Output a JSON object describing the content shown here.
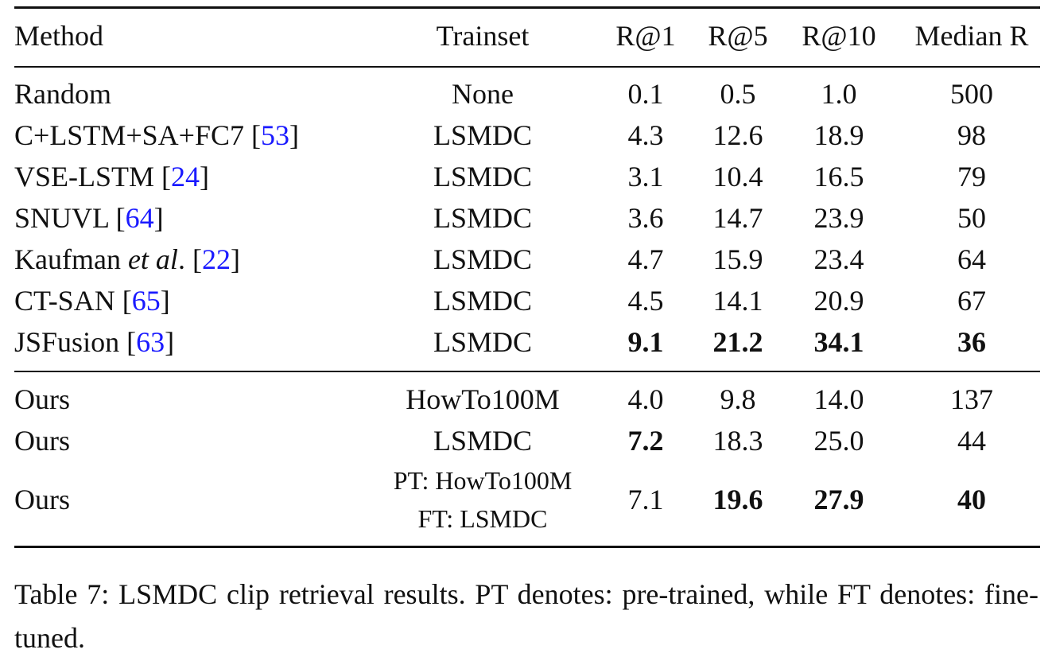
{
  "table": {
    "header": [
      "Method",
      "Trainset",
      "R@1",
      "R@5",
      "R@10",
      "Median R"
    ],
    "groups": [
      [
        {
          "method": [
            {
              "text": "Random"
            }
          ],
          "trainset": [
            "None"
          ],
          "values": [
            "0.1",
            "0.5",
            "1.0",
            "500"
          ],
          "bold": []
        },
        {
          "method": [
            {
              "text": "C+LSTM+SA+FC7 ["
            },
            {
              "text": "53",
              "link": true
            },
            {
              "text": "]"
            }
          ],
          "trainset": [
            "LSMDC"
          ],
          "values": [
            "4.3",
            "12.6",
            "18.9",
            "98"
          ],
          "bold": []
        },
        {
          "method": [
            {
              "text": "VSE-LSTM ["
            },
            {
              "text": "24",
              "link": true
            },
            {
              "text": "]"
            }
          ],
          "trainset": [
            "LSMDC"
          ],
          "values": [
            "3.1",
            "10.4",
            "16.5",
            "79"
          ],
          "bold": []
        },
        {
          "method": [
            {
              "text": "SNUVL ["
            },
            {
              "text": "64",
              "link": true
            },
            {
              "text": "]"
            }
          ],
          "trainset": [
            "LSMDC"
          ],
          "values": [
            "3.6",
            "14.7",
            "23.9",
            "50"
          ],
          "bold": []
        },
        {
          "method": [
            {
              "text": "Kaufman "
            },
            {
              "text": "et al",
              "italic": true
            },
            {
              "text": ". ["
            },
            {
              "text": "22",
              "link": true
            },
            {
              "text": "]"
            }
          ],
          "trainset": [
            "LSMDC"
          ],
          "values": [
            "4.7",
            "15.9",
            "23.4",
            "64"
          ],
          "bold": []
        },
        {
          "method": [
            {
              "text": "CT-SAN ["
            },
            {
              "text": "65",
              "link": true
            },
            {
              "text": "]"
            }
          ],
          "trainset": [
            "LSMDC"
          ],
          "values": [
            "4.5",
            "14.1",
            "20.9",
            "67"
          ],
          "bold": []
        },
        {
          "method": [
            {
              "text": "JSFusion ["
            },
            {
              "text": "63",
              "link": true
            },
            {
              "text": "]"
            }
          ],
          "trainset": [
            "LSMDC"
          ],
          "values": [
            "9.1",
            "21.2",
            "34.1",
            "36"
          ],
          "bold": [
            0,
            1,
            2,
            3
          ]
        }
      ],
      [
        {
          "method": [
            {
              "text": "Ours"
            }
          ],
          "trainset": [
            "HowTo100M"
          ],
          "values": [
            "4.0",
            "9.8",
            "14.0",
            "137"
          ],
          "bold": []
        },
        {
          "method": [
            {
              "text": "Ours"
            }
          ],
          "trainset": [
            "LSMDC"
          ],
          "values": [
            "7.2",
            "18.3",
            "25.0",
            "44"
          ],
          "bold": [
            0
          ]
        },
        {
          "method": [
            {
              "text": "Ours"
            }
          ],
          "trainset": [
            "PT: HowTo100M",
            "FT: LSMDC"
          ],
          "values": [
            "7.1",
            "19.6",
            "27.9",
            "40"
          ],
          "bold": [
            1,
            2,
            3
          ]
        }
      ]
    ]
  },
  "caption": "Table 7: LSMDC clip retrieval results. PT denotes: pre-trained, while FT denotes: fine-tuned."
}
